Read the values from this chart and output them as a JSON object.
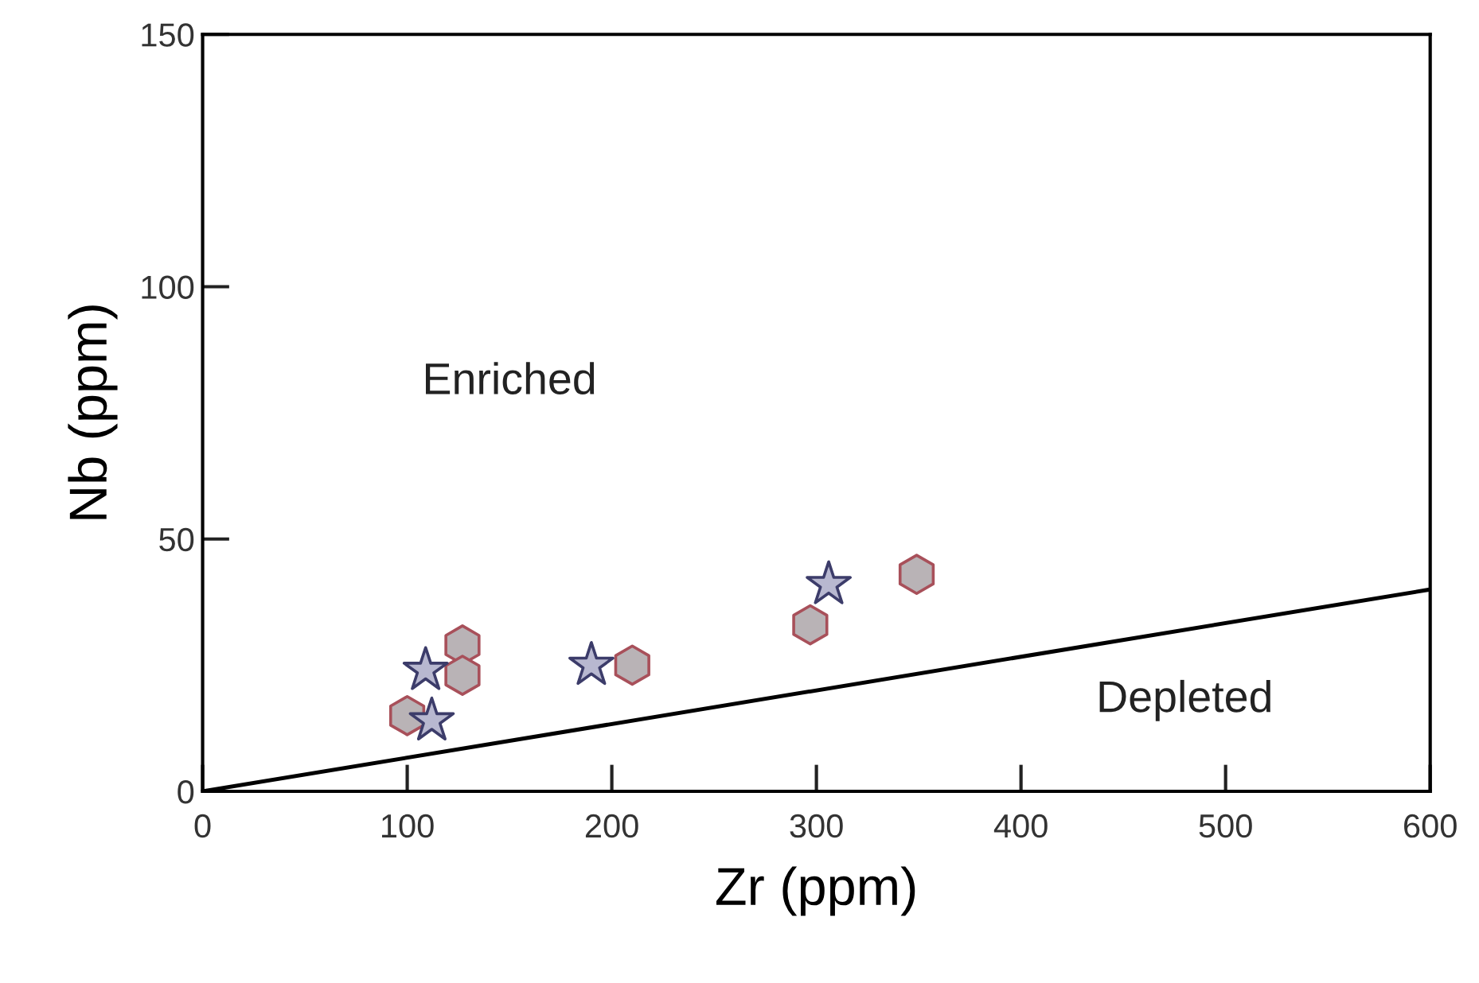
{
  "chart_data": {
    "type": "scatter",
    "xlabel": "Zr (ppm)",
    "ylabel": "Nb (ppm)",
    "xlim": [
      0,
      600
    ],
    "ylim": [
      0,
      150
    ],
    "xticks": [
      0,
      100,
      200,
      300,
      400,
      500,
      600
    ],
    "yticks": [
      0,
      50,
      100,
      150
    ],
    "grid": false,
    "legend": false,
    "series": [
      {
        "color": "#b9b3b6",
        "x": [
          100,
          127,
          127,
          210,
          297,
          349
        ],
        "values": [
          15,
          29,
          23,
          25,
          33,
          43
        ]
      },
      {
        "marker": "star",
        "color": "#b8b8d0",
        "x": [
          112,
          109,
          190,
          306
        ],
        "values": [
          14,
          24,
          25,
          41
        ]
      },
      {
        "type": "line",
        "marker": "none",
        "color": "#000000",
        "x": [
          0,
          600
        ],
        "values": [
          0,
          40
        ]
      }
    ],
    "annotations": [
      "Enriched",
      "Depleted"
    ]
  }
}
